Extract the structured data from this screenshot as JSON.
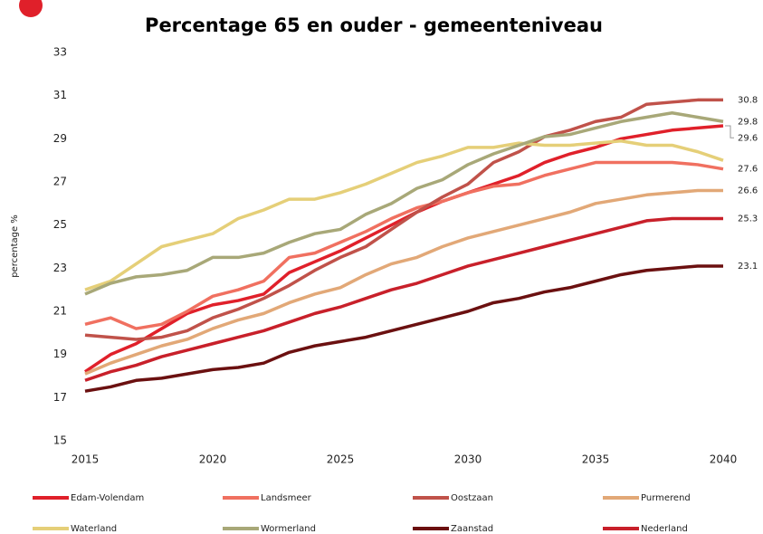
{
  "chart_data": {
    "type": "line",
    "title": "Percentage 65 en ouder - gemeenteniveau",
    "y_label": "percentage %",
    "x": [
      2015,
      2016,
      2017,
      2018,
      2019,
      2020,
      2021,
      2022,
      2023,
      2024,
      2025,
      2026,
      2027,
      2028,
      2029,
      2030,
      2031,
      2032,
      2033,
      2034,
      2035,
      2036,
      2037,
      2038,
      2039,
      2040
    ],
    "xlim": [
      2015,
      2040
    ],
    "xticks": [
      2015,
      2020,
      2025,
      2030,
      2035,
      2040
    ],
    "ylim": [
      15,
      33
    ],
    "yticks": [
      15,
      17,
      19,
      21,
      23,
      25,
      27,
      29,
      31,
      33
    ],
    "grid": false,
    "legend": "bottom",
    "series": [
      {
        "name": "Edam-Volendam",
        "color": "#e0202a",
        "end_label": true,
        "values": [
          18.2,
          19.0,
          19.5,
          20.2,
          20.9,
          21.3,
          21.5,
          21.8,
          22.8,
          23.3,
          23.8,
          24.4,
          25.0,
          25.6,
          26.1,
          26.5,
          26.9,
          27.3,
          27.9,
          28.3,
          28.6,
          29.0,
          29.2,
          29.4,
          29.5,
          29.6
        ]
      },
      {
        "name": "Landsmeer",
        "color": "#f07060",
        "end_label": true,
        "values": [
          20.4,
          20.7,
          20.2,
          20.4,
          21.0,
          21.7,
          22.0,
          22.4,
          23.5,
          23.7,
          24.2,
          24.7,
          25.3,
          25.8,
          26.1,
          26.5,
          26.8,
          26.9,
          27.3,
          27.6,
          27.9,
          27.9,
          27.9,
          27.9,
          27.8,
          27.6
        ]
      },
      {
        "name": "Oostzaan",
        "color": "#c0524a",
        "end_label": true,
        "values": [
          19.9,
          19.8,
          19.7,
          19.8,
          20.1,
          20.7,
          21.1,
          21.6,
          22.2,
          22.9,
          23.5,
          24.0,
          24.8,
          25.6,
          26.3,
          26.9,
          27.9,
          28.4,
          29.1,
          29.4,
          29.8,
          30.0,
          30.6,
          30.7,
          30.8,
          30.8
        ]
      },
      {
        "name": "Purmerend",
        "color": "#e2a877",
        "end_label": true,
        "values": [
          18.1,
          18.6,
          19.0,
          19.4,
          19.7,
          20.2,
          20.6,
          20.9,
          21.4,
          21.8,
          22.1,
          22.7,
          23.2,
          23.5,
          24.0,
          24.4,
          24.7,
          25.0,
          25.3,
          25.6,
          26.0,
          26.2,
          26.4,
          26.5,
          26.6,
          26.6
        ]
      },
      {
        "name": "Waterland",
        "color": "#e5cf78",
        "end_label": false,
        "values": [
          22.0,
          22.4,
          23.2,
          24.0,
          24.3,
          24.6,
          25.3,
          25.7,
          26.2,
          26.2,
          26.5,
          26.9,
          27.4,
          27.9,
          28.2,
          28.6,
          28.6,
          28.8,
          28.7,
          28.7,
          28.8,
          28.9,
          28.7,
          28.7,
          28.4,
          28.0
        ]
      },
      {
        "name": "Wormerland",
        "color": "#a8a878",
        "end_label": true,
        "values": [
          21.8,
          22.3,
          22.6,
          22.7,
          22.9,
          23.5,
          23.5,
          23.7,
          24.2,
          24.6,
          24.8,
          25.5,
          26.0,
          26.7,
          27.1,
          27.8,
          28.3,
          28.7,
          29.1,
          29.2,
          29.5,
          29.8,
          30.0,
          30.2,
          30.0,
          29.8
        ]
      },
      {
        "name": "Zaanstad",
        "color": "#6b1010",
        "end_label": true,
        "values": [
          17.3,
          17.5,
          17.8,
          17.9,
          18.1,
          18.3,
          18.4,
          18.6,
          19.1,
          19.4,
          19.6,
          19.8,
          20.1,
          20.4,
          20.7,
          21.0,
          21.4,
          21.6,
          21.9,
          22.1,
          22.4,
          22.7,
          22.9,
          23.0,
          23.1,
          23.1
        ]
      },
      {
        "name": "Nederland",
        "color": "#c8202a",
        "end_label": true,
        "values": [
          17.8,
          18.2,
          18.5,
          18.9,
          19.2,
          19.5,
          19.8,
          20.1,
          20.5,
          20.9,
          21.2,
          21.6,
          22.0,
          22.3,
          22.7,
          23.1,
          23.4,
          23.7,
          24.0,
          24.3,
          24.6,
          24.9,
          25.2,
          25.3,
          25.3,
          25.3
        ]
      }
    ]
  }
}
